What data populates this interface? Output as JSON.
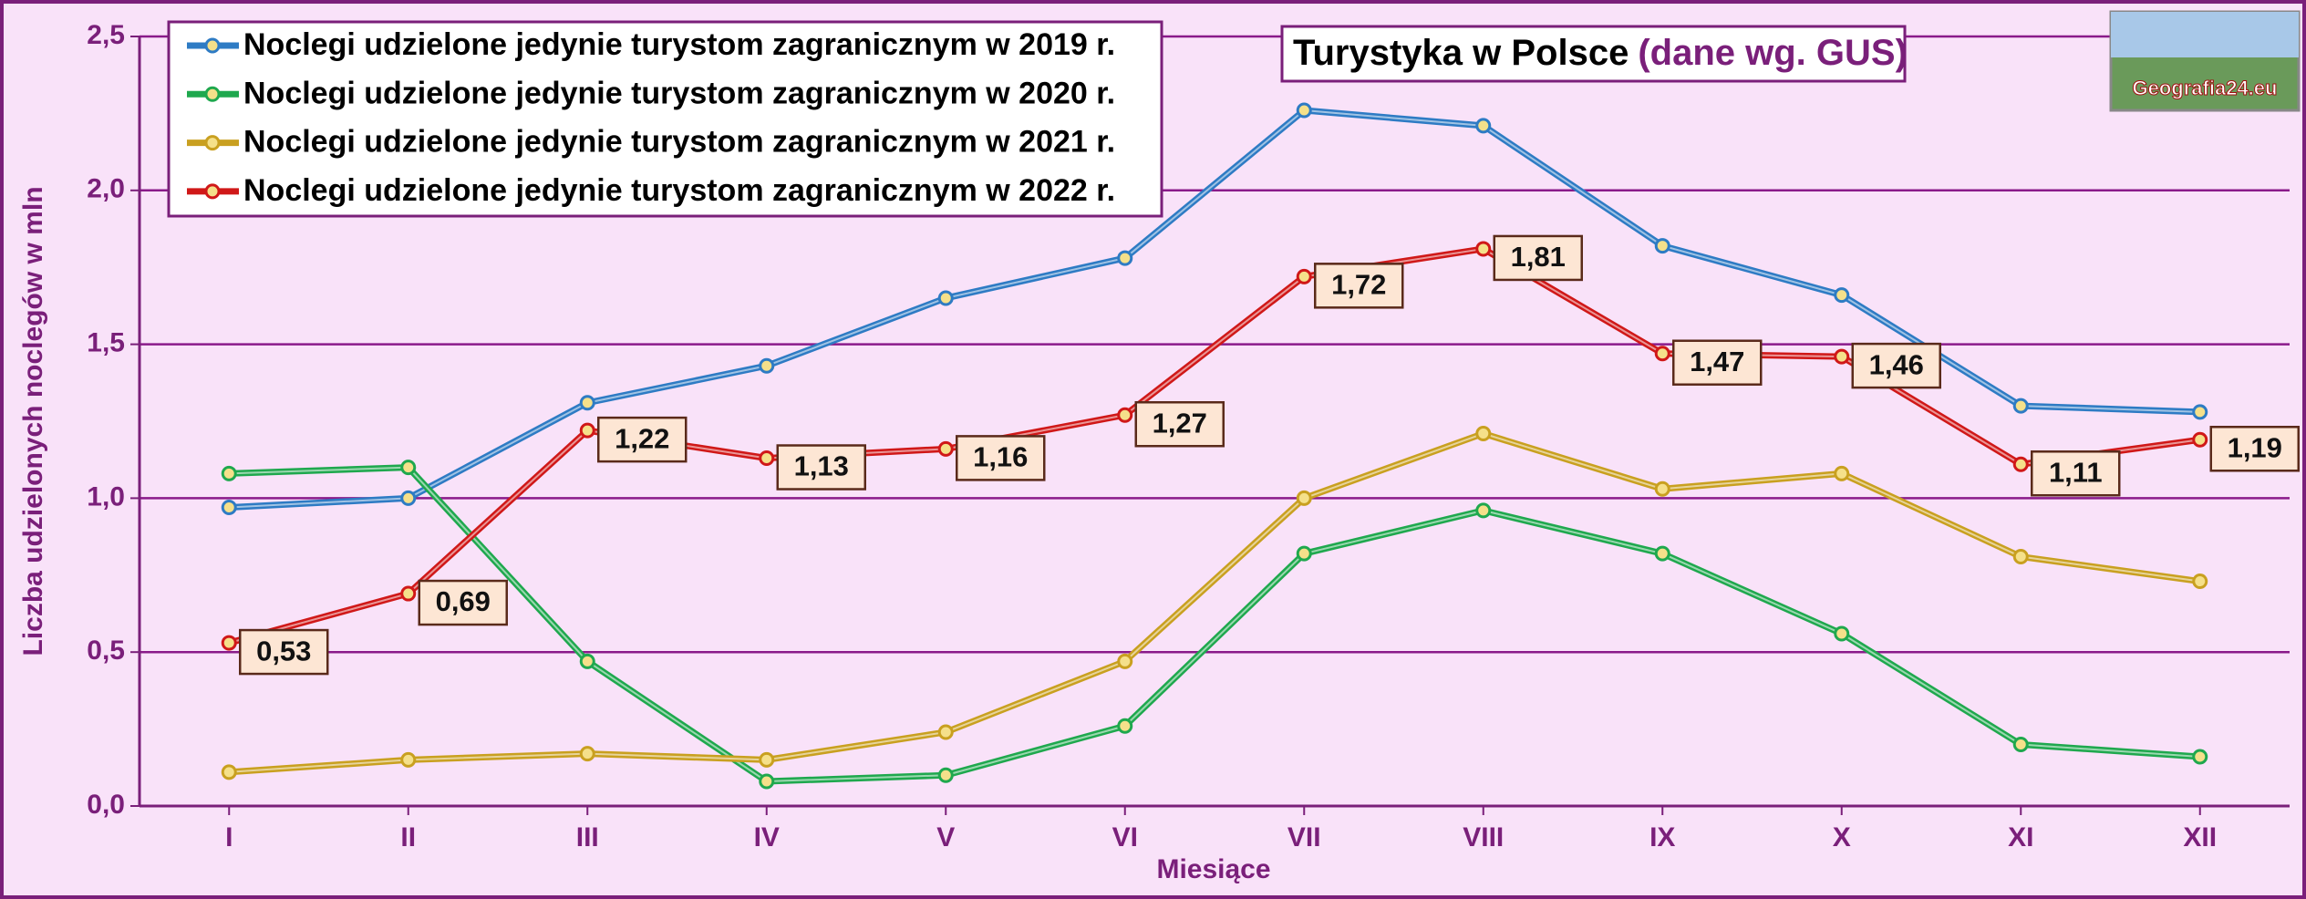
{
  "chart_data": {
    "type": "line",
    "title": "Turystyka w Polsce",
    "title_note": "(dane wg. GUS)",
    "logo_text": "Geografia24.eu",
    "x_label": "Miesiące",
    "y_label": "Liczba udzielonych noclegów w mln",
    "categories": [
      "I",
      "II",
      "III",
      "IV",
      "V",
      "VI",
      "VII",
      "VIII",
      "IX",
      "X",
      "XI",
      "XII"
    ],
    "ylim": [
      0,
      2.5
    ],
    "yticks": [
      {
        "value": 0,
        "label": "0,0"
      },
      {
        "value": 0.5,
        "label": "0,5"
      },
      {
        "value": 1,
        "label": "1,0"
      },
      {
        "value": 1.5,
        "label": "1,5"
      },
      {
        "value": 2,
        "label": "2,0"
      },
      {
        "value": 2.5,
        "label": "2,5"
      }
    ],
    "grid": true,
    "legend": "top-left",
    "series": [
      {
        "name": "Noclegi udzielone jedynie turystom zagranicznym w 2019 r.",
        "color": "#2e7bc4",
        "values": [
          0.97,
          1.0,
          1.31,
          1.43,
          1.65,
          1.78,
          2.26,
          2.21,
          1.82,
          1.66,
          1.3,
          1.28
        ]
      },
      {
        "name": "Noclegi udzielone jedynie turystom zagranicznym w 2020 r.",
        "color": "#1fa84e",
        "values": [
          1.08,
          1.1,
          0.47,
          0.08,
          0.1,
          0.26,
          0.82,
          0.96,
          0.82,
          0.56,
          0.2,
          0.16
        ]
      },
      {
        "name": "Noclegi udzielone jedynie turystom zagranicznym w 2021 r.",
        "color": "#c9a020",
        "values": [
          0.11,
          0.15,
          0.17,
          0.15,
          0.24,
          0.47,
          1.0,
          1.21,
          1.03,
          1.08,
          0.81,
          0.73
        ]
      },
      {
        "name": "Noclegi udzielone jedynie turystom zagranicznym w 2022 r.",
        "color": "#d01818",
        "values": [
          0.53,
          0.69,
          1.22,
          1.13,
          1.16,
          1.27,
          1.72,
          1.81,
          1.47,
          1.46,
          1.11,
          1.19
        ],
        "value_labels": [
          "0,53",
          "0,69",
          "1,22",
          "1,13",
          "1,16",
          "1,27",
          "1,72",
          "1,81",
          "1,47",
          "1,46",
          "1,11",
          "1,19"
        ]
      }
    ]
  }
}
